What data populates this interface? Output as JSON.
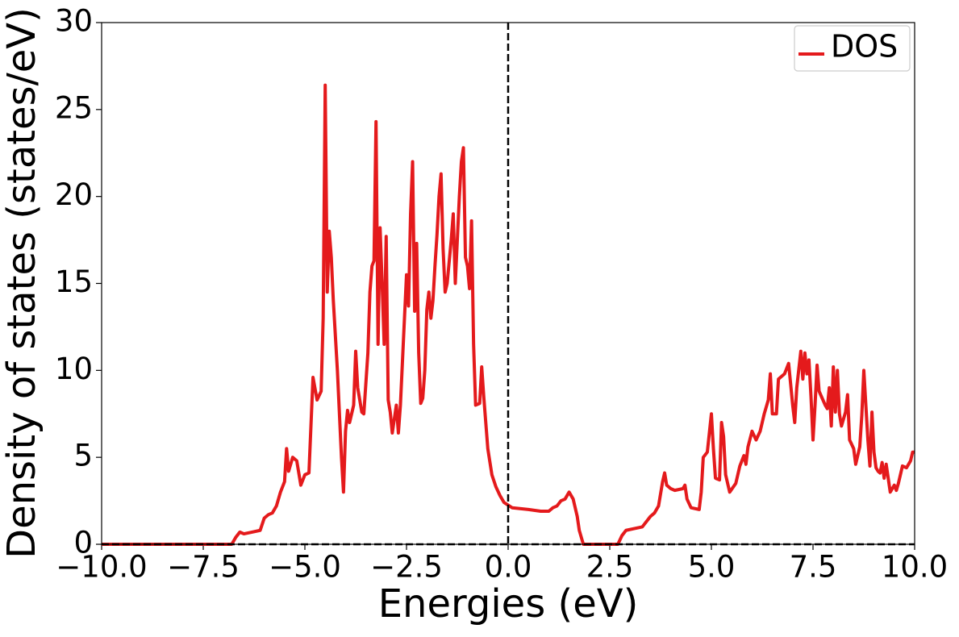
{
  "chart_data": {
    "type": "line",
    "xlabel": "Energies (eV)",
    "ylabel": "Density of states (states/eV)",
    "xlim": [
      -10,
      10
    ],
    "ylim": [
      0,
      30
    ],
    "xticks": [
      {
        "value": -10,
        "label": "−10.0"
      },
      {
        "value": -7.5,
        "label": "−7.5"
      },
      {
        "value": -5,
        "label": "−5.0"
      },
      {
        "value": -2.5,
        "label": "−2.5"
      },
      {
        "value": 0,
        "label": "0.0"
      },
      2.5,
      {
        "value": 5,
        "label": "5.0"
      },
      7.5,
      {
        "value": 10,
        "label": "10.0"
      }
    ],
    "yticks": [
      0,
      5,
      10,
      15,
      20,
      25,
      30
    ],
    "grid": false,
    "legend": "upper right",
    "reference_lines": [
      {
        "axis": "x",
        "value": 0
      },
      {
        "axis": "y",
        "value": 0
      }
    ],
    "x": [
      -10,
      -6.8,
      -6.7,
      -6.6,
      -6.5,
      -6.3,
      -6.1,
      -6.0,
      -5.9,
      -5.8,
      -5.7,
      -5.6,
      -5.5,
      -5.45,
      -5.4,
      -5.3,
      -5.2,
      -5.1,
      -5.0,
      -4.9,
      -4.8,
      -4.7,
      -4.6,
      -4.55,
      -4.5,
      -4.45,
      -4.4,
      -4.35,
      -4.3,
      -4.2,
      -4.1,
      -4.05,
      -4.0,
      -3.95,
      -3.9,
      -3.8,
      -3.75,
      -3.7,
      -3.6,
      -3.55,
      -3.45,
      -3.4,
      -3.35,
      -3.3,
      -3.25,
      -3.2,
      -3.15,
      -3.1,
      -3.05,
      -3.0,
      -2.95,
      -2.9,
      -2.85,
      -2.75,
      -2.7,
      -2.65,
      -2.55,
      -2.5,
      -2.45,
      -2.4,
      -2.35,
      -2.3,
      -2.25,
      -2.2,
      -2.15,
      -2.1,
      -2.05,
      -2.0,
      -1.95,
      -1.9,
      -1.85,
      -1.8,
      -1.75,
      -1.7,
      -1.65,
      -1.6,
      -1.55,
      -1.5,
      -1.4,
      -1.35,
      -1.3,
      -1.25,
      -1.2,
      -1.15,
      -1.1,
      -1.05,
      -1.0,
      -0.95,
      -0.9,
      -0.85,
      -0.8,
      -0.7,
      -0.65,
      -0.6,
      -0.5,
      -0.4,
      -0.3,
      -0.2,
      -0.1,
      0.1,
      0.5,
      0.8,
      1.0,
      1.1,
      1.2,
      1.3,
      1.4,
      1.5,
      1.6,
      1.7,
      1.75,
      1.85,
      2.7,
      2.8,
      2.9,
      3.1,
      3.3,
      3.5,
      3.6,
      3.7,
      3.8,
      3.85,
      3.9,
      4.0,
      4.1,
      4.3,
      4.35,
      4.4,
      4.5,
      4.7,
      4.75,
      4.8,
      4.9,
      5.0,
      5.05,
      5.1,
      5.2,
      5.25,
      5.3,
      5.35,
      5.45,
      5.6,
      5.7,
      5.8,
      5.85,
      5.9,
      6.0,
      6.1,
      6.2,
      6.3,
      6.4,
      6.45,
      6.5,
      6.6,
      6.65,
      6.8,
      6.9,
      7.0,
      7.05,
      7.1,
      7.2,
      7.25,
      7.3,
      7.35,
      7.4,
      7.45,
      7.5,
      7.55,
      7.6,
      7.65,
      7.8,
      7.85,
      7.9,
      7.95,
      8.0,
      8.05,
      8.1,
      8.15,
      8.2,
      8.3,
      8.35,
      8.4,
      8.5,
      8.55,
      8.65,
      8.7,
      8.75,
      8.85,
      8.9,
      8.95,
      9.0,
      9.05,
      9.1,
      9.15,
      9.2,
      9.25,
      9.3,
      9.4,
      9.5,
      9.55,
      9.6,
      9.7,
      9.8,
      9.9,
      9.95,
      10
    ],
    "series": [
      {
        "name": "DOS",
        "color": "#e41a1c",
        "values": [
          0,
          0,
          0.4,
          0.7,
          0.6,
          0.7,
          0.8,
          1.5,
          1.7,
          1.8,
          2.2,
          3,
          3.6,
          5.5,
          4.2,
          5,
          4.8,
          3.4,
          4,
          4.1,
          9.6,
          8.3,
          8.8,
          13,
          26.4,
          14.5,
          18,
          16.5,
          14,
          10,
          5,
          3,
          6.5,
          7.7,
          7,
          8,
          11.1,
          9,
          7.6,
          7.5,
          11,
          14.5,
          16,
          16.3,
          24.3,
          11.5,
          18.2,
          15,
          11.5,
          17.7,
          8.3,
          7.6,
          6.4,
          8,
          6.4,
          8,
          13,
          15.5,
          13.7,
          19,
          22,
          13.4,
          17.3,
          11,
          8.1,
          8.4,
          10,
          13.5,
          14.5,
          13,
          14,
          16,
          17.8,
          20,
          21.3,
          17,
          14.5,
          15,
          17.5,
          19,
          15,
          17.5,
          20,
          22,
          22.8,
          16.5,
          16,
          14.7,
          18.6,
          11.5,
          8,
          8.1,
          10.2,
          8.5,
          5.5,
          4,
          3.3,
          2.8,
          2.4,
          2.1,
          2.0,
          1.9,
          1.9,
          2.1,
          2.2,
          2.5,
          2.6,
          3.0,
          2.6,
          1.6,
          0.8,
          0,
          0,
          0.5,
          0.8,
          0.9,
          1,
          1.6,
          1.8,
          2.2,
          3.6,
          4.1,
          3.4,
          3.2,
          3.1,
          3.2,
          3.4,
          2.6,
          2.1,
          2.0,
          3,
          5,
          5.3,
          7.5,
          5.5,
          3.8,
          3.7,
          7,
          6.2,
          4,
          3,
          3.5,
          4.5,
          5.1,
          4.6,
          5.6,
          6.5,
          6,
          6.5,
          7.5,
          8.3,
          9.8,
          7.5,
          7.5,
          9.5,
          9.8,
          10.4,
          8,
          7,
          9,
          11.1,
          9.5,
          11,
          9.8,
          10.6,
          8.5,
          6,
          8,
          10.3,
          8.8,
          8,
          7.8,
          9,
          6.8,
          10.2,
          7.6,
          10,
          7.5,
          6.8,
          7.6,
          8.6,
          6,
          5.5,
          4.6,
          5.6,
          7.4,
          10,
          6,
          4.5,
          7.6,
          5.3,
          4.4,
          4.2,
          4.1,
          4.7,
          3.8,
          4.6,
          3,
          3.4,
          3.1,
          3.5,
          4.5,
          4.4,
          4.8,
          5.3,
          5.3
        ]
      }
    ]
  }
}
